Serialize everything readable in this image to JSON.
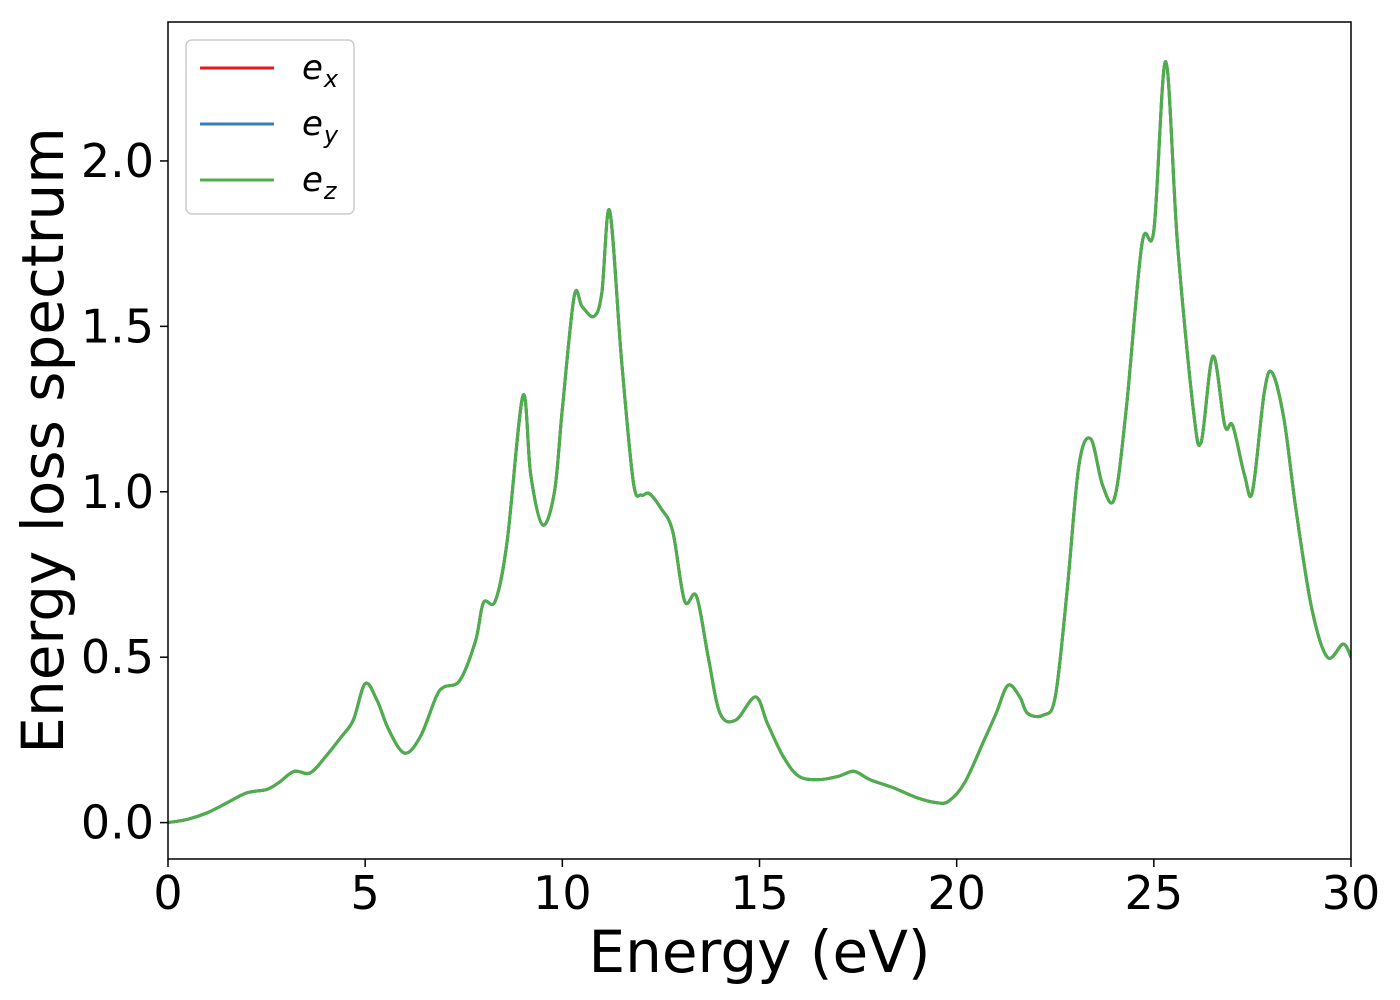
{
  "chart_data": {
    "type": "line",
    "title": "",
    "xlabel": "Energy (eV)",
    "ylabel": "Energy loss spectrum",
    "xlim": [
      0,
      30
    ],
    "ylim": [
      -0.11,
      2.42
    ],
    "xticks": [
      0,
      5,
      10,
      15,
      20,
      25,
      30
    ],
    "xtick_labels": [
      "0",
      "5",
      "10",
      "15",
      "20",
      "25",
      "30"
    ],
    "yticks": [
      0.0,
      0.5,
      1.0,
      1.5,
      2.0
    ],
    "ytick_labels": [
      "0.0",
      "0.5",
      "1.0",
      "1.5",
      "2.0"
    ],
    "grid": false,
    "legend": "upper-left",
    "series": [
      {
        "name": "e",
        "subscript": "x",
        "color": "#e41a1c"
      },
      {
        "name": "e",
        "subscript": "y",
        "color": "#377eb8"
      },
      {
        "name": "e",
        "subscript": "z",
        "color": "#4daf4a"
      }
    ],
    "shared_points": [
      [
        0,
        0.0
      ],
      [
        0.5,
        0.01
      ],
      [
        1.0,
        0.03
      ],
      [
        1.5,
        0.06
      ],
      [
        2.0,
        0.09
      ],
      [
        2.5,
        0.1
      ],
      [
        2.8,
        0.12
      ],
      [
        3.2,
        0.155
      ],
      [
        3.6,
        0.15
      ],
      [
        4.0,
        0.2
      ],
      [
        4.4,
        0.26
      ],
      [
        4.7,
        0.31
      ],
      [
        5.0,
        0.42
      ],
      [
        5.3,
        0.37
      ],
      [
        5.6,
        0.28
      ],
      [
        6.0,
        0.21
      ],
      [
        6.4,
        0.26
      ],
      [
        6.8,
        0.38
      ],
      [
        7.0,
        0.41
      ],
      [
        7.4,
        0.43
      ],
      [
        7.8,
        0.55
      ],
      [
        8.0,
        0.665
      ],
      [
        8.3,
        0.67
      ],
      [
        8.6,
        0.85
      ],
      [
        9.0,
        1.29
      ],
      [
        9.2,
        1.05
      ],
      [
        9.5,
        0.9
      ],
      [
        9.8,
        1.0
      ],
      [
        10.0,
        1.25
      ],
      [
        10.3,
        1.59
      ],
      [
        10.5,
        1.56
      ],
      [
        10.8,
        1.53
      ],
      [
        11.0,
        1.6
      ],
      [
        11.2,
        1.85
      ],
      [
        11.5,
        1.4
      ],
      [
        11.8,
        1.03
      ],
      [
        12.0,
        0.99
      ],
      [
        12.2,
        0.995
      ],
      [
        12.5,
        0.95
      ],
      [
        12.8,
        0.88
      ],
      [
        13.1,
        0.67
      ],
      [
        13.4,
        0.685
      ],
      [
        13.7,
        0.5
      ],
      [
        14.0,
        0.33
      ],
      [
        14.4,
        0.31
      ],
      [
        14.9,
        0.38
      ],
      [
        15.2,
        0.3
      ],
      [
        15.6,
        0.2
      ],
      [
        16.0,
        0.14
      ],
      [
        16.5,
        0.13
      ],
      [
        17.0,
        0.14
      ],
      [
        17.4,
        0.155
      ],
      [
        17.8,
        0.13
      ],
      [
        18.4,
        0.105
      ],
      [
        19.0,
        0.075
      ],
      [
        19.5,
        0.06
      ],
      [
        19.8,
        0.065
      ],
      [
        20.2,
        0.12
      ],
      [
        20.7,
        0.25
      ],
      [
        21.0,
        0.33
      ],
      [
        21.3,
        0.415
      ],
      [
        21.6,
        0.38
      ],
      [
        21.8,
        0.33
      ],
      [
        22.2,
        0.325
      ],
      [
        22.5,
        0.38
      ],
      [
        22.8,
        0.7
      ],
      [
        23.1,
        1.08
      ],
      [
        23.4,
        1.16
      ],
      [
        23.7,
        1.02
      ],
      [
        24.0,
        0.98
      ],
      [
        24.3,
        1.25
      ],
      [
        24.7,
        1.75
      ],
      [
        25.0,
        1.79
      ],
      [
        25.3,
        2.3
      ],
      [
        25.6,
        1.75
      ],
      [
        26.0,
        1.25
      ],
      [
        26.2,
        1.15
      ],
      [
        26.5,
        1.41
      ],
      [
        26.8,
        1.2
      ],
      [
        27.0,
        1.2
      ],
      [
        27.3,
        1.05
      ],
      [
        27.5,
        1.0
      ],
      [
        27.8,
        1.3
      ],
      [
        28.0,
        1.36
      ],
      [
        28.3,
        1.22
      ],
      [
        28.6,
        0.95
      ],
      [
        29.0,
        0.65
      ],
      [
        29.4,
        0.5
      ],
      [
        29.8,
        0.54
      ],
      [
        30.0,
        0.5
      ]
    ]
  }
}
